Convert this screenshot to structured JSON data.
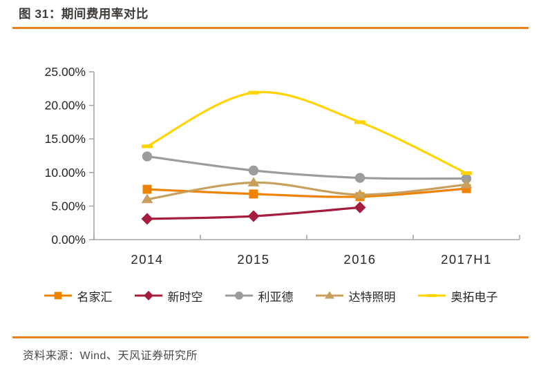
{
  "title": {
    "text": "图 31：期间费用率对比"
  },
  "footer": {
    "text": "资料来源：Wind、天风证券研究所"
  },
  "colors": {
    "accent_rule": "#E8801E",
    "axis": "#A6A6A6",
    "tick_label": "#262626",
    "title_text": "#3E3B38",
    "footer_text": "#4A4A4A"
  },
  "chart_data": {
    "type": "line",
    "smooth": true,
    "grid": false,
    "legend_position": "bottom",
    "categories": [
      "2014",
      "2015",
      "2016",
      "2017H1"
    ],
    "y_ticks": [
      "25.00%",
      "20.00%",
      "15.00%",
      "10.00%",
      "5.00%",
      "0.00%"
    ],
    "ylim": [
      0,
      25
    ],
    "series": [
      {
        "name": "名家汇",
        "color": "#EF8200",
        "marker": "square",
        "values": [
          7.5,
          6.8,
          6.4,
          7.6
        ]
      },
      {
        "name": "新时空",
        "color": "#A61C3F",
        "marker": "diamond",
        "values": [
          3.1,
          3.5,
          4.8,
          null
        ]
      },
      {
        "name": "利亚德",
        "color": "#9C9C9C",
        "marker": "circle",
        "values": [
          12.4,
          10.3,
          9.2,
          9.1
        ]
      },
      {
        "name": "达特照明",
        "color": "#C8A05E",
        "marker": "triangle",
        "values": [
          6.0,
          8.5,
          6.7,
          8.2
        ]
      },
      {
        "name": "奥拓电子",
        "color": "#FFD400",
        "marker": "dash",
        "values": [
          13.9,
          21.9,
          17.5,
          9.9
        ]
      }
    ]
  }
}
